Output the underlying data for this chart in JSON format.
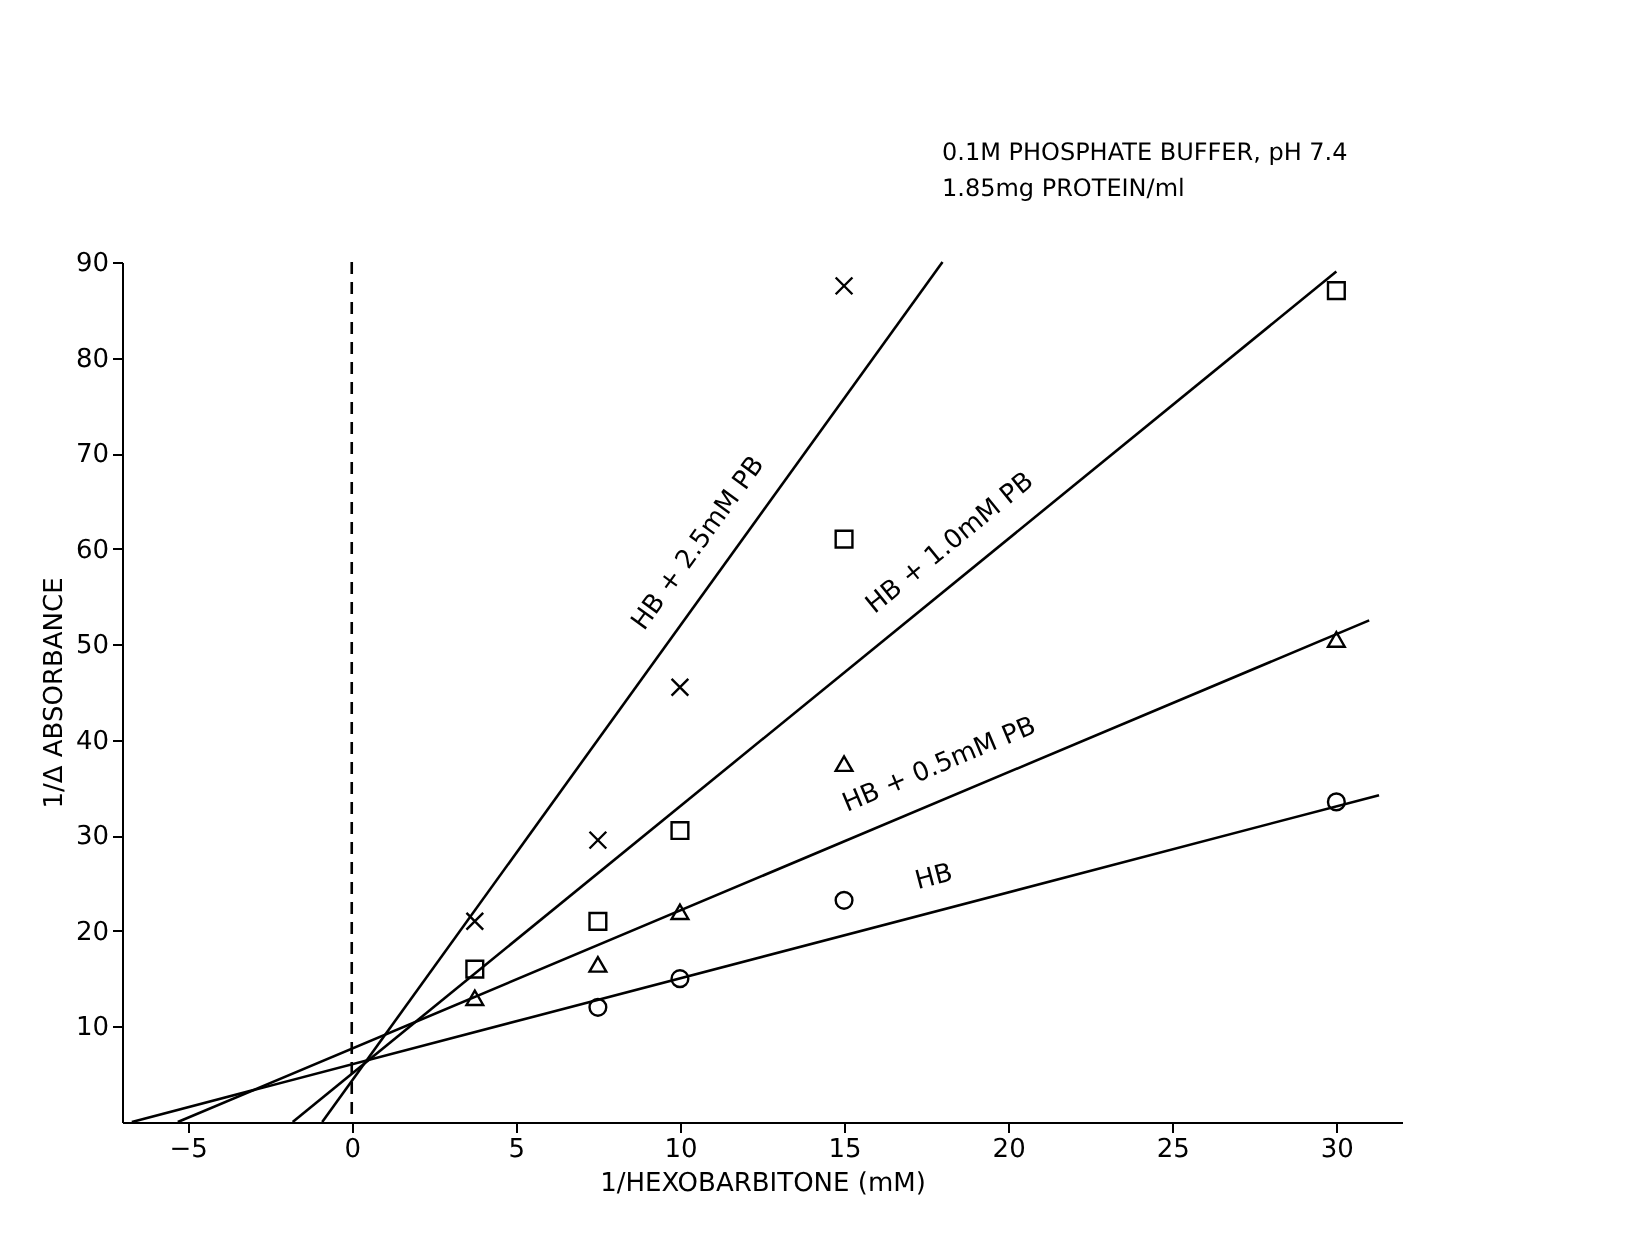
{
  "chart_data": {
    "type": "scatter",
    "xlabel": "1/HEXOBARBITONE (mM)",
    "ylabel": "1/Δ ABSORBANCE",
    "annotations": [
      "0.1M PHOSPHATE BUFFER, pH 7.4",
      "1.85mg PROTEIN/ml"
    ],
    "xlim": [
      -7,
      32
    ],
    "ylim": [
      0,
      90
    ],
    "xticks": [
      -5,
      0,
      5,
      10,
      15,
      20,
      25,
      30
    ],
    "yticks": [
      10,
      20,
      30,
      40,
      50,
      60,
      70,
      80,
      90
    ],
    "grid": false,
    "ref_lines": [
      {
        "axis": "x",
        "value": 0,
        "line_style": "dashed",
        "color": "#000000"
      }
    ],
    "series": [
      {
        "marker": "circle",
        "color": "#000000",
        "x": [
          7.5,
          10,
          15,
          30
        ],
        "values": [
          12,
          15,
          23.2,
          33.5
        ]
      },
      {
        "marker": "triangle",
        "color": "#000000",
        "x": [
          3.75,
          7.5,
          10,
          15,
          30
        ],
        "values": [
          13,
          16.5,
          22,
          37.5,
          50.5
        ]
      },
      {
        "marker": "square",
        "color": "#000000",
        "x": [
          3.75,
          7.5,
          10,
          15,
          30
        ],
        "values": [
          16,
          21,
          30.5,
          61,
          87
        ]
      },
      {
        "marker": "cross",
        "color": "#000000",
        "x": [
          3.75,
          7.5,
          10,
          15
        ],
        "values": [
          21,
          29.5,
          45.5,
          87.5
        ]
      },
      {
        "type": "line",
        "name": "HB",
        "color": "#000000",
        "x": [
          -6.7,
          31.3
        ],
        "values": [
          0,
          34.2
        ]
      },
      {
        "type": "line",
        "name": "HB + 0.5mM PB",
        "color": "#000000",
        "x": [
          -5.3,
          31
        ],
        "values": [
          0,
          52.5
        ]
      },
      {
        "type": "line",
        "name": "HB + 1.0mM PB",
        "color": "#000000",
        "x": [
          -1.8,
          30
        ],
        "values": [
          0,
          89
        ]
      },
      {
        "type": "line",
        "name": "HB + 2.5mM PB",
        "color": "#000000",
        "x": [
          -0.9,
          18
        ],
        "values": [
          0,
          90
        ]
      }
    ]
  }
}
